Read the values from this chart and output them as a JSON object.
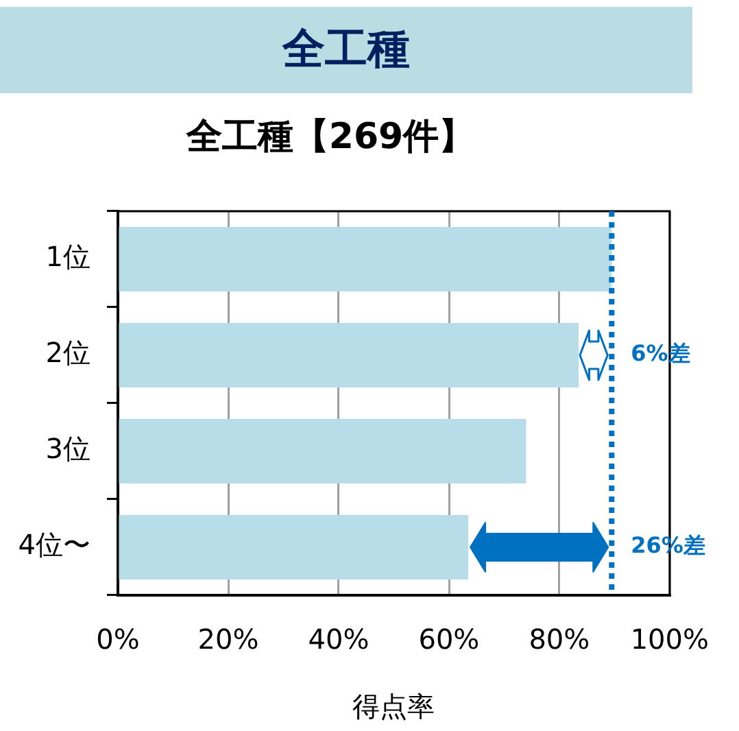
{
  "chart_data": {
    "type": "bar",
    "orientation": "horizontal",
    "title": "全工種",
    "subtitle": "全工種【269件】",
    "xlabel": "得点率",
    "categories": [
      "1位",
      "2位",
      "3位",
      "4位〜"
    ],
    "values": [
      89.5,
      83.5,
      74,
      63.5
    ],
    "color": "#b7dde8",
    "xlim": [
      0,
      100
    ],
    "xticks": [
      {
        "value": 0,
        "label": "0%"
      },
      {
        "value": 20,
        "label": "20%"
      },
      {
        "value": 40,
        "label": "40%"
      },
      {
        "value": 60,
        "label": "60%"
      },
      {
        "value": 80,
        "label": "80%"
      },
      {
        "value": 100,
        "label": "100%"
      }
    ],
    "grid": "x",
    "ref_lines": [
      {
        "axis": "x",
        "value": 89.5,
        "color": "#0070c0",
        "line_style": "dotted"
      }
    ],
    "annotations": [
      {
        "text": "6%差",
        "x": 89.5,
        "y": "2位"
      },
      {
        "text": "26%差",
        "x": 89.5,
        "y": "4位〜"
      }
    ]
  }
}
